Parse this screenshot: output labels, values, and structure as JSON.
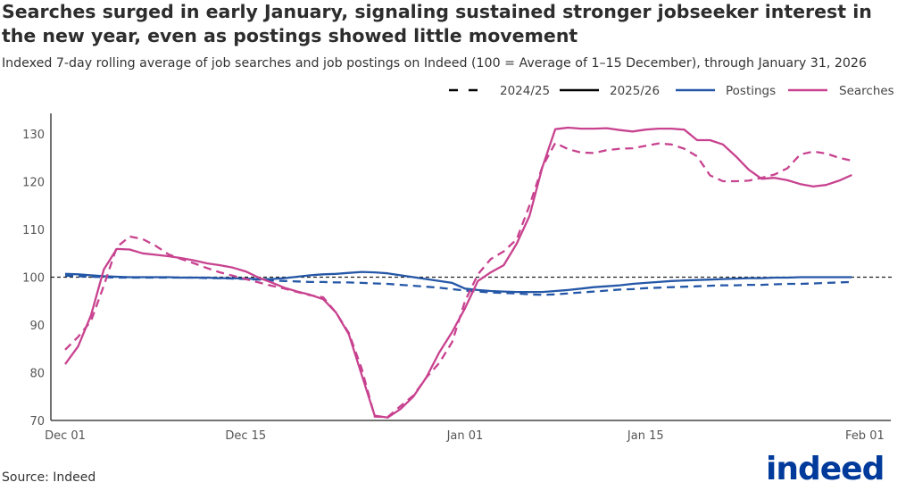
{
  "chart_data": {
    "type": "line",
    "title": "Searches surged in early January, signaling sustained stronger jobseeker interest in the new year, even as postings showed little movement",
    "subtitle": "Indexed 7-day rolling average of job searches and job postings on Indeed (100 = Average of 1–15 December), through January 31, 2026",
    "source": "Source: Indeed",
    "logo_text": "indeed",
    "xlabel": "",
    "ylabel": "",
    "ylim": [
      70,
      134
    ],
    "yticks": [
      70,
      80,
      90,
      100,
      110,
      120,
      130
    ],
    "xticks": [
      {
        "label": "Dec 01",
        "day": "Dec 01"
      },
      {
        "label": "Dec 15",
        "day": "Dec 15"
      },
      {
        "label": "Jan 01",
        "day": "Jan 01"
      },
      {
        "label": "Jan 15",
        "day": "Jan 15"
      },
      {
        "label": "Feb 01",
        "day": "Feb 01"
      }
    ],
    "reference_line": 100,
    "grid": false,
    "legend_placement": "top-right",
    "legend": [
      {
        "label": "2024/25",
        "style": "dashed",
        "color": "#000000"
      },
      {
        "label": "2025/26",
        "style": "solid",
        "color": "#000000"
      },
      {
        "label": "Postings",
        "style": "solid",
        "color": "#2557A7"
      },
      {
        "label": "Searches",
        "style": "solid",
        "color": "#C8428F"
      }
    ],
    "x_start": "Dec 01",
    "x_end": "Jan 31",
    "series": [
      {
        "name": "Postings 2025/26",
        "metric": "Postings",
        "period": "2025/26",
        "color": "#2557A7",
        "dash": false,
        "values": [
          100.7,
          100.6,
          100.4,
          100.2,
          100.1,
          100.0,
          100.0,
          100.0,
          100.0,
          99.9,
          99.9,
          99.9,
          99.8,
          99.8,
          99.7,
          99.6,
          99.6,
          99.8,
          100.1,
          100.4,
          100.6,
          100.7,
          100.9,
          101.1,
          101.0,
          100.8,
          100.4,
          100.0,
          99.6,
          99.2,
          98.8,
          97.6,
          97.3,
          97.1,
          97.0,
          96.9,
          96.9,
          96.9,
          97.1,
          97.3,
          97.6,
          97.9,
          98.1,
          98.3,
          98.6,
          98.8,
          99.0,
          99.2,
          99.3,
          99.4,
          99.5,
          99.6,
          99.7,
          99.8,
          99.8,
          99.9,
          99.9,
          100.0,
          100.0,
          100.0,
          100.0,
          100.0
        ]
      },
      {
        "name": "Postings 2024/25",
        "metric": "Postings",
        "period": "2024/25",
        "color": "#2557A7",
        "dash": true,
        "values": [
          100.3,
          100.2,
          100.1,
          100.0,
          99.9,
          99.9,
          99.9,
          99.9,
          99.9,
          99.9,
          99.9,
          99.8,
          99.8,
          99.7,
          99.6,
          99.5,
          99.3,
          99.2,
          99.1,
          99.0,
          99.0,
          98.9,
          98.9,
          98.8,
          98.7,
          98.6,
          98.4,
          98.2,
          98.0,
          97.8,
          97.5,
          97.2,
          97.0,
          96.8,
          96.7,
          96.6,
          96.4,
          96.3,
          96.4,
          96.6,
          96.8,
          97.0,
          97.2,
          97.4,
          97.5,
          97.7,
          97.8,
          97.9,
          98.0,
          98.1,
          98.2,
          98.3,
          98.3,
          98.4,
          98.4,
          98.5,
          98.6,
          98.6,
          98.7,
          98.8,
          98.9,
          99.0
        ]
      },
      {
        "name": "Searches 2025/26",
        "metric": "Searches",
        "period": "2025/26",
        "color": "#C8428F",
        "dash": false,
        "values": [
          81.8,
          85.5,
          92,
          101.6,
          105.9,
          105.8,
          105,
          104.7,
          104.4,
          104,
          103.5,
          102.9,
          102.5,
          102,
          101.2,
          99.9,
          98.9,
          97.8,
          97,
          96.3,
          95.4,
          92.6,
          88,
          79.5,
          71,
          70.6,
          72.4,
          75,
          79,
          84.2,
          88.5,
          93.5,
          99.2,
          101,
          102.5,
          107,
          112.8,
          123,
          131,
          131.3,
          131.1,
          131.1,
          131.2,
          130.8,
          130.5,
          130.9,
          131.1,
          131.1,
          130.9,
          128.7,
          128.7,
          127.8,
          125.3,
          122.5,
          120.6,
          120.8,
          120.3,
          119.5,
          119,
          119.3,
          120.2,
          121.4
        ]
      },
      {
        "name": "Searches 2024/25",
        "metric": "Searches",
        "period": "2024/25",
        "color": "#C8428F",
        "dash": true,
        "values": [
          84.8,
          87.5,
          90.8,
          98.2,
          106.3,
          108.5,
          108,
          106.6,
          104.8,
          103.8,
          102.9,
          101.9,
          101,
          100.3,
          99.6,
          98.9,
          98.2,
          97.6,
          96.9,
          96.2,
          95.8,
          92.6,
          88.3,
          80.8,
          70.8,
          70.7,
          73,
          75.2,
          79,
          82,
          86.4,
          95,
          100.6,
          103.8,
          105.4,
          107.9,
          115,
          123.1,
          128.1,
          126.8,
          126.1,
          126,
          126.6,
          126.9,
          127,
          127.5,
          128,
          127.8,
          126.9,
          125.3,
          121.3,
          120.1,
          120.1,
          120.2,
          120.8,
          121.5,
          122.8,
          125.7,
          126.3,
          125.9,
          125,
          124.4
        ]
      }
    ]
  }
}
